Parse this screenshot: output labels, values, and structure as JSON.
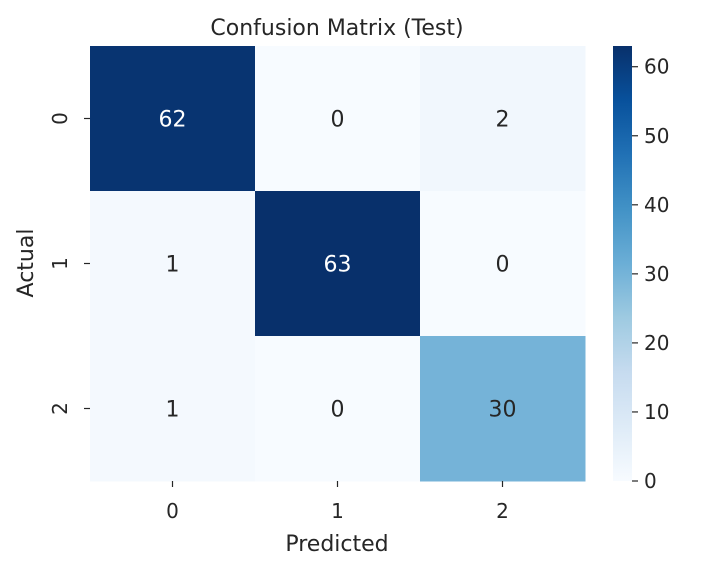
{
  "chart_data": {
    "type": "heatmap",
    "title": "Confusion Matrix (Test)",
    "xlabel": "Predicted",
    "ylabel": "Actual",
    "x_categories": [
      "0",
      "1",
      "2"
    ],
    "y_categories": [
      "0",
      "1",
      "2"
    ],
    "values": [
      [
        62,
        0,
        2
      ],
      [
        1,
        63,
        0
      ],
      [
        1,
        0,
        30
      ]
    ],
    "colormap": "Blues",
    "vmin": 0,
    "vmax": 63,
    "colorbar_ticks": [
      "0",
      "10",
      "20",
      "30",
      "40",
      "50",
      "60"
    ],
    "annotate_cells": true
  }
}
